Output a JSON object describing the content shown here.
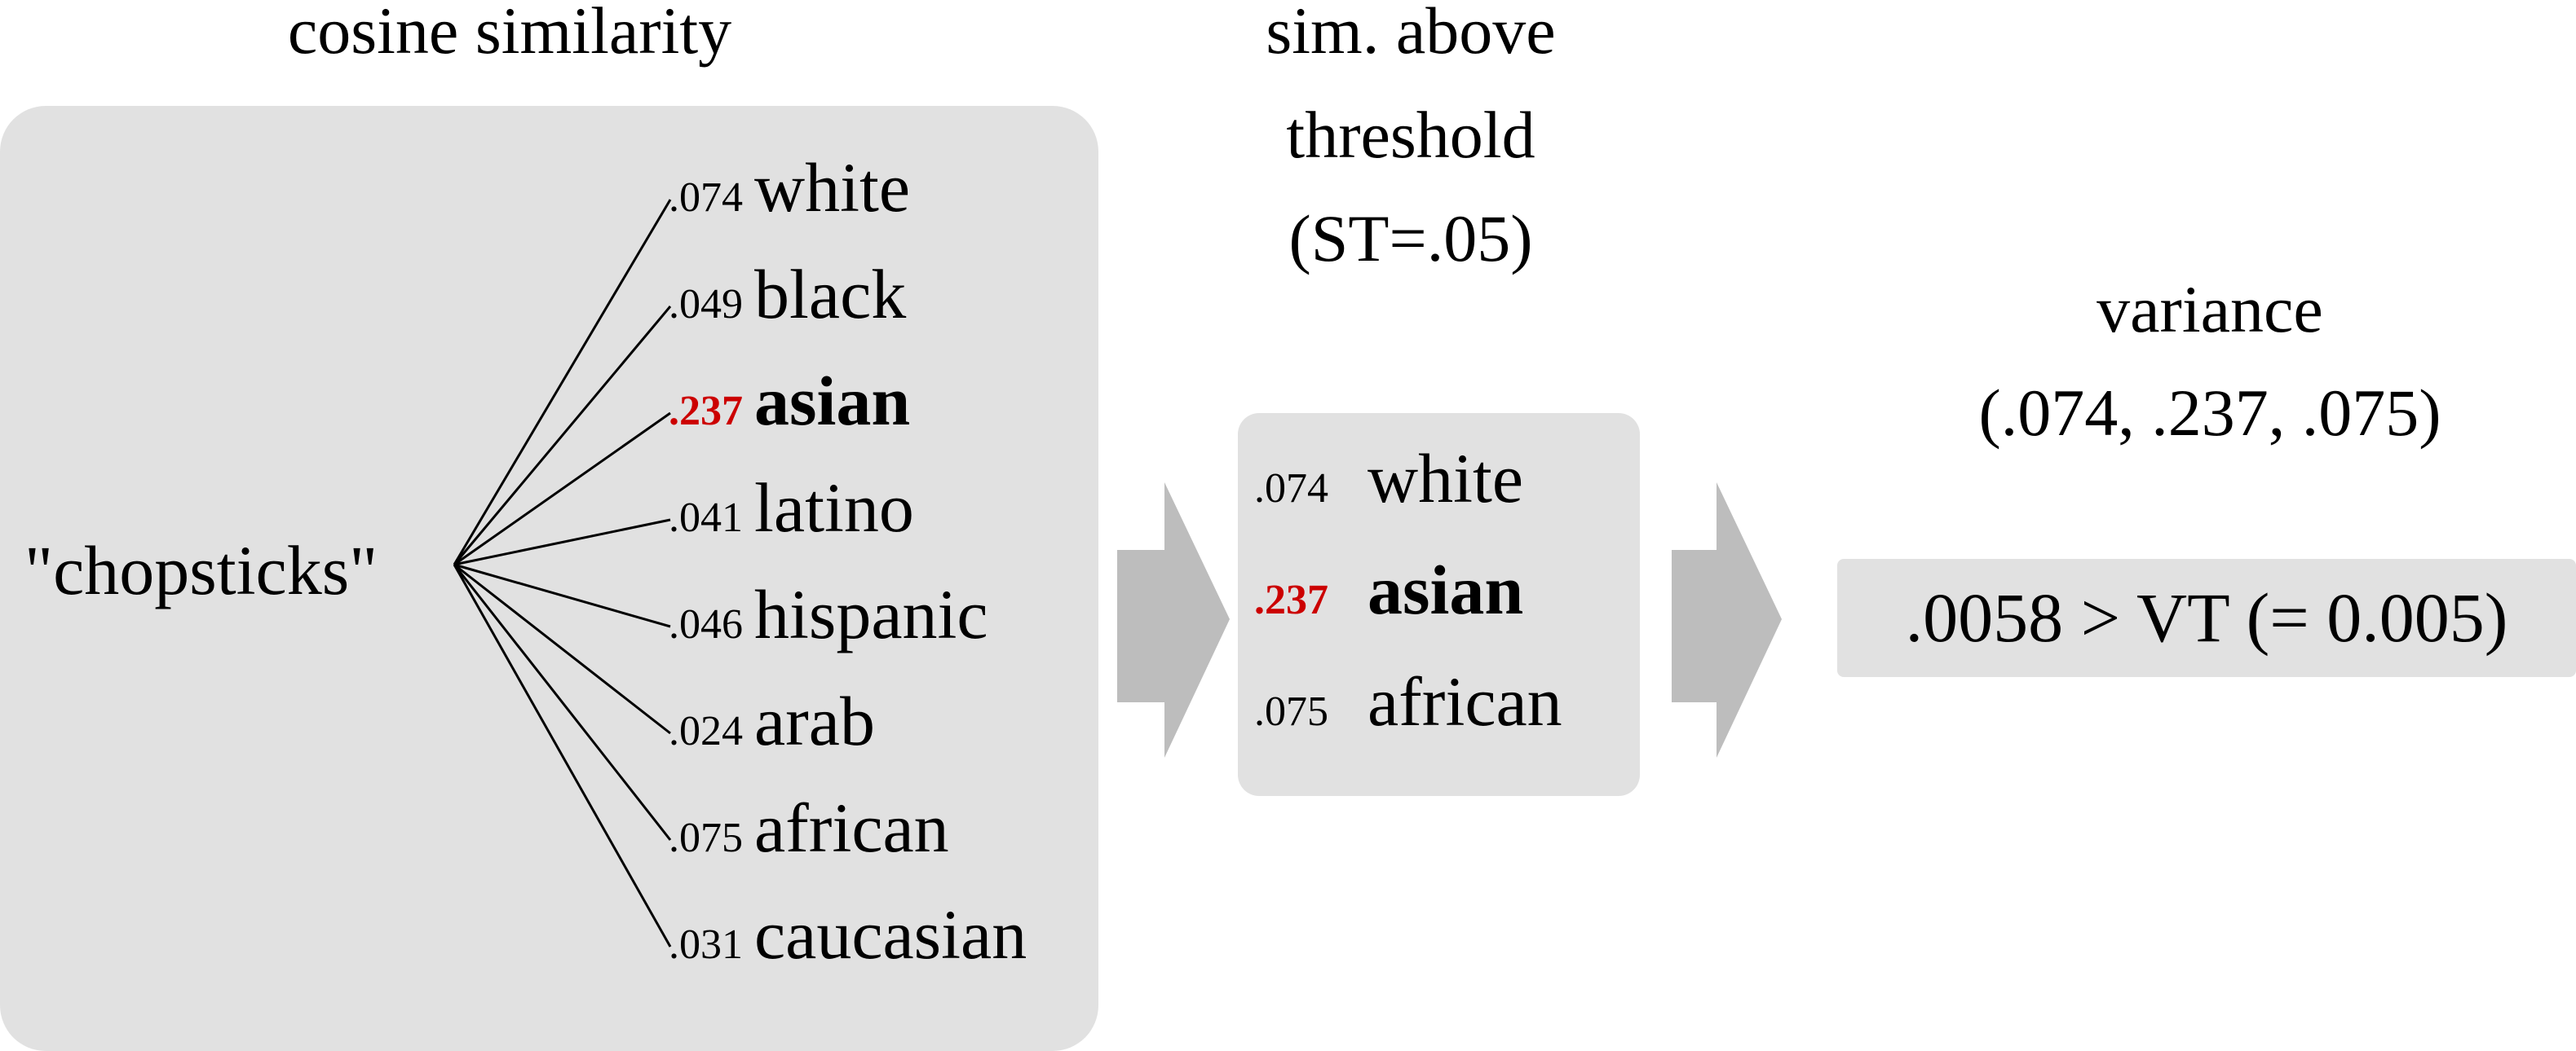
{
  "headings": {
    "cosine": "cosine similarity",
    "threshold_lines": [
      "sim. above",
      "threshold",
      "(ST=.05)"
    ],
    "variance_lines": [
      "variance",
      "(.074, .237, .075)"
    ]
  },
  "query": "\"chopsticks\"",
  "similarities": [
    {
      "score": ".074",
      "word": "white",
      "highlight": false
    },
    {
      "score": ".049",
      "word": "black",
      "highlight": false
    },
    {
      "score": ".237",
      "word": "asian",
      "highlight": true
    },
    {
      "score": ".041",
      "word": "latino",
      "highlight": false
    },
    {
      "score": ".046",
      "word": "hispanic",
      "highlight": false
    },
    {
      "score": ".024",
      "word": "arab",
      "highlight": false
    },
    {
      "score": ".075",
      "word": "african",
      "highlight": false
    },
    {
      "score": ".031",
      "word": "caucasian",
      "highlight": false
    }
  ],
  "above_threshold": [
    {
      "score": ".074",
      "word": "white",
      "highlight": false
    },
    {
      "score": ".237",
      "word": "asian",
      "highlight": true
    },
    {
      "score": ".075",
      "word": "african",
      "highlight": false
    }
  ],
  "result": ".0058 > VT (= 0.005)",
  "colors": {
    "panel": "#e1e1e1",
    "arrow": "#bdbdbd",
    "highlight": "#cc0000"
  }
}
